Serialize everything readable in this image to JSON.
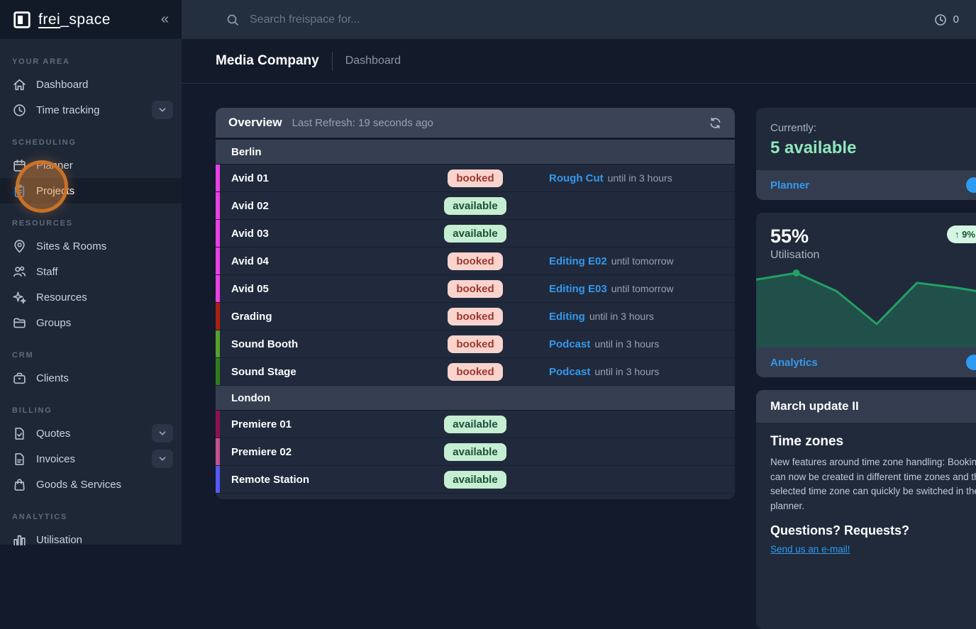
{
  "app": {
    "logo_frei": "frei",
    "logo_space": "_space",
    "collapse_icon": "«"
  },
  "topbar": {
    "search_placeholder": "Search freispace for...",
    "timer_text": "0"
  },
  "breadcrumb": {
    "title": "Media Company",
    "section": "Dashboard"
  },
  "sidebar": {
    "sections": [
      {
        "label": "YOUR AREA",
        "items": [
          {
            "label": "Dashboard",
            "icon": "home-icon"
          },
          {
            "label": "Time tracking",
            "icon": "clock-icon",
            "chevron": true
          }
        ]
      },
      {
        "label": "SCHEDULING",
        "items": [
          {
            "label": "Planner",
            "icon": "calendar-icon"
          },
          {
            "label": "Projects",
            "icon": "clipboard-icon",
            "active": true
          }
        ]
      },
      {
        "label": "RESOURCES",
        "items": [
          {
            "label": "Sites & Rooms",
            "icon": "map-pin-icon"
          },
          {
            "label": "Staff",
            "icon": "users-icon"
          },
          {
            "label": "Resources",
            "icon": "sparkles-icon"
          },
          {
            "label": "Groups",
            "icon": "folder-icon"
          }
        ]
      },
      {
        "label": "CRM",
        "items": [
          {
            "label": "Clients",
            "icon": "briefcase-icon"
          }
        ]
      },
      {
        "label": "BILLING",
        "items": [
          {
            "label": "Quotes",
            "icon": "doc-check-icon",
            "chevron": true
          },
          {
            "label": "Invoices",
            "icon": "doc-icon",
            "chevron": true
          },
          {
            "label": "Goods & Services",
            "icon": "bag-icon"
          }
        ]
      },
      {
        "label": "ANALYTICS",
        "items": [
          {
            "label": "Utilisation",
            "icon": "bar-chart-icon"
          }
        ]
      }
    ]
  },
  "overview": {
    "title": "Overview",
    "last_refresh": "Last Refresh: 19 seconds ago",
    "groups": [
      {
        "name": "Berlin",
        "rows": [
          {
            "name": "Avid 01",
            "bar_color": "#e93fe3",
            "status": "booked",
            "booking": "Rough Cut",
            "until": "until in 3 hours"
          },
          {
            "name": "Avid 02",
            "bar_color": "#e93fe3",
            "status": "available",
            "booking": "",
            "until": ""
          },
          {
            "name": "Avid 03",
            "bar_color": "#e93fe3",
            "status": "available",
            "booking": "",
            "until": ""
          },
          {
            "name": "Avid 04",
            "bar_color": "#e93fe3",
            "status": "booked",
            "booking": "Editing E02",
            "until": "until tomorrow"
          },
          {
            "name": "Avid 05",
            "bar_color": "#e93fe3",
            "status": "booked",
            "booking": "Editing E03",
            "until": "until tomorrow"
          },
          {
            "name": "Grading",
            "bar_color": "#ab2012",
            "status": "booked",
            "booking": "Editing",
            "until": "until in 3 hours"
          },
          {
            "name": "Sound Booth",
            "bar_color": "#55a02c",
            "status": "booked",
            "booking": "Podcast",
            "until": "until in 3 hours"
          },
          {
            "name": "Sound Stage",
            "bar_color": "#2f7d1b",
            "status": "booked",
            "booking": "Podcast",
            "until": "until in 3 hours"
          }
        ]
      },
      {
        "name": "London",
        "rows": [
          {
            "name": "Premiere 01",
            "bar_color": "#8e1155",
            "status": "available",
            "booking": "",
            "until": ""
          },
          {
            "name": "Premiere 02",
            "bar_color": "#c4518f",
            "status": "available",
            "booking": "",
            "until": ""
          },
          {
            "name": "Remote Station",
            "bar_color": "#5659f2",
            "status": "available",
            "booking": "",
            "until": ""
          }
        ]
      }
    ]
  },
  "cards": {
    "availability": {
      "label": "Currently:",
      "value": "5 available",
      "footer_link": "Planner"
    },
    "utilisation": {
      "value": "55%",
      "label": "Utilisation",
      "delta": "↑ 9%",
      "footer_link": "Analytics"
    },
    "news": {
      "title": "March update II",
      "heading": "Time zones",
      "body": "New features around time zone handling: Bookings can now be created in different time zones and the selected time zone can quickly be switched in the planner.",
      "subheading": "Questions? Requests?",
      "link": "Send us an e-mail!"
    }
  },
  "chart_data": {
    "type": "line",
    "title": "Utilisation sparkline",
    "values": [
      62,
      66,
      55,
      35,
      60,
      57,
      53
    ],
    "marker_index": 1,
    "line_color": "#22a065",
    "fill_color": "rgba(38,160,106,0.32)",
    "grid": false,
    "legend": false
  },
  "colors": {
    "accent_blue": "#3598ec",
    "mint": "#8fe7ba",
    "booked_bg": "#f8d4cd",
    "booked_text": "#9e372e",
    "available_bg": "#c5eed2",
    "available_text": "#1d5138",
    "click_highlight": "#ce7428"
  }
}
